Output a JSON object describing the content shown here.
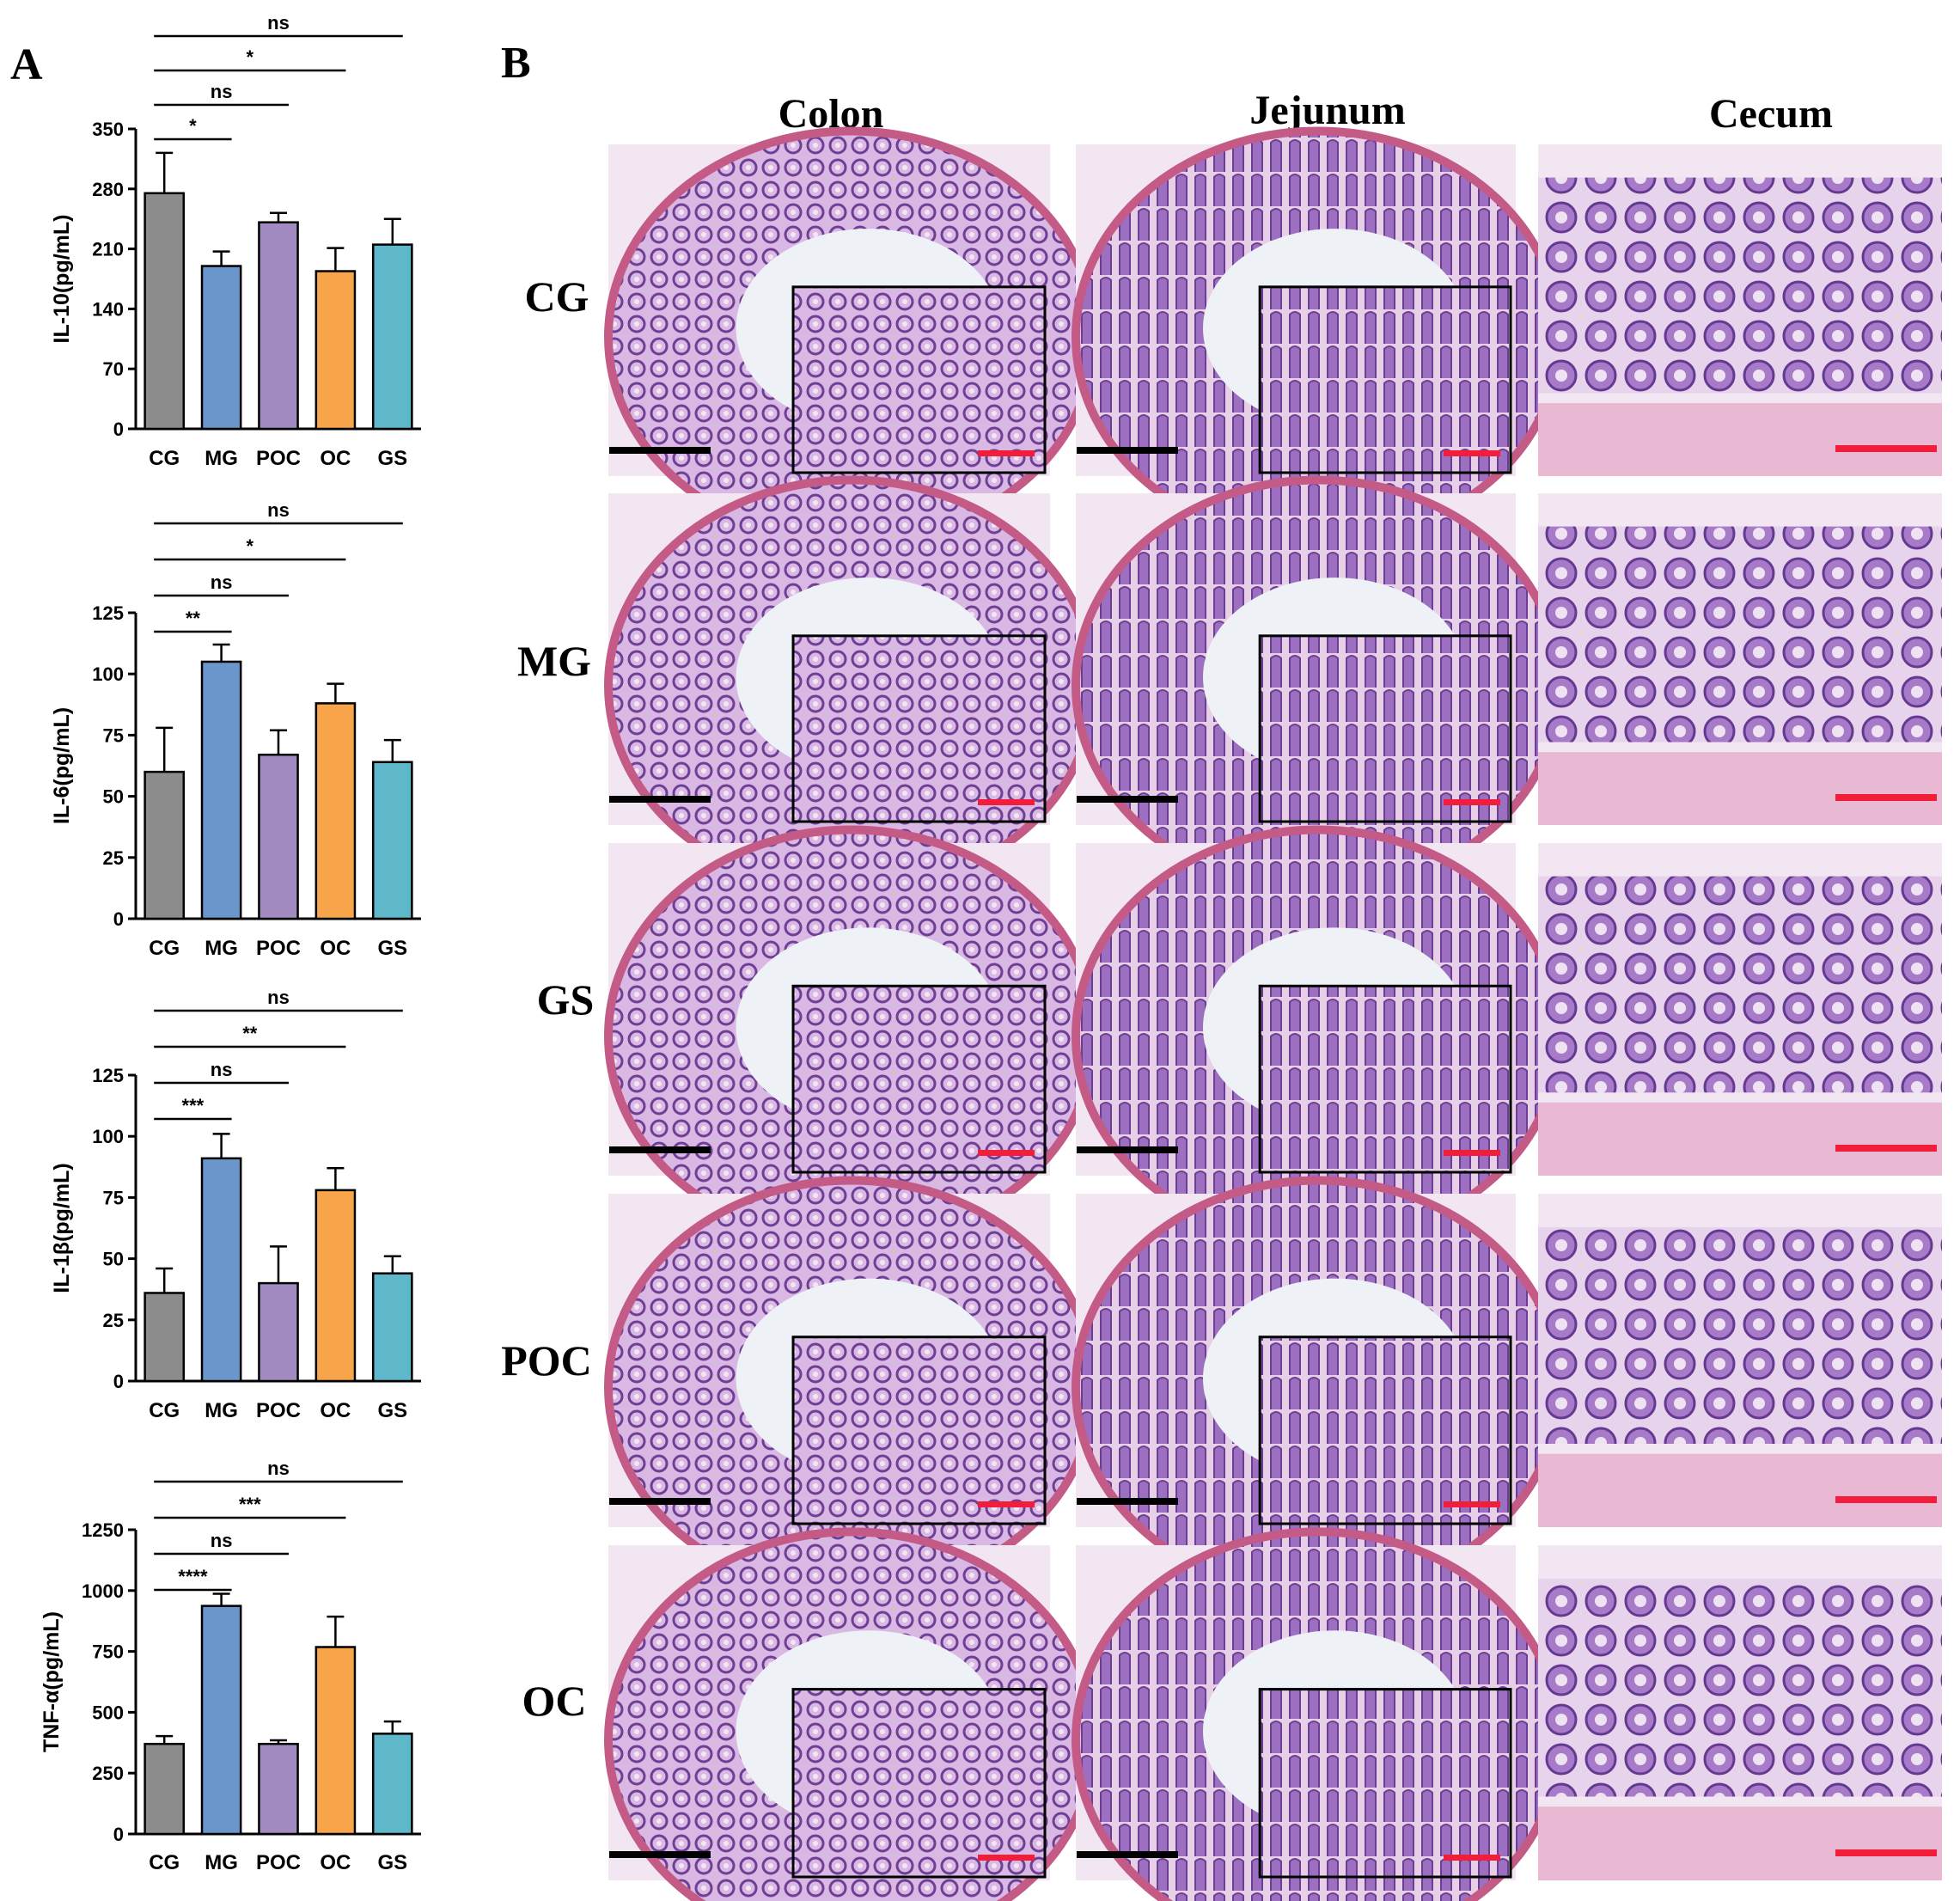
{
  "panels": {
    "a": "A",
    "b": "B"
  },
  "chart_data": [
    {
      "type": "bar",
      "ylabel": "IL-10(pg/mL)",
      "categories": [
        "CG",
        "MG",
        "POC",
        "OC",
        "GS"
      ],
      "values": [
        275,
        190,
        241,
        184,
        215
      ],
      "errors": [
        47,
        17,
        11,
        27,
        30
      ],
      "colors": [
        "#8c8c8c",
        "#6b96cb",
        "#a18bc0",
        "#f7a44a",
        "#5fb8c9"
      ],
      "ylim": [
        0,
        350
      ],
      "yticks": [
        0,
        70,
        140,
        210,
        280,
        350
      ],
      "comparisons": [
        {
          "a": "CG",
          "b": "MG",
          "label": "*"
        },
        {
          "a": "CG",
          "b": "POC",
          "label": "ns"
        },
        {
          "a": "CG",
          "b": "OC",
          "label": "*"
        },
        {
          "a": "CG",
          "b": "GS",
          "label": "ns"
        }
      ]
    },
    {
      "type": "bar",
      "ylabel": "IL-6(pg/mL)",
      "categories": [
        "CG",
        "MG",
        "POC",
        "OC",
        "GS"
      ],
      "values": [
        60,
        105,
        67,
        88,
        64
      ],
      "errors": [
        18,
        7,
        10,
        8,
        9
      ],
      "colors": [
        "#8c8c8c",
        "#6b96cb",
        "#a18bc0",
        "#f7a44a",
        "#5fb8c9"
      ],
      "ylim": [
        0,
        125
      ],
      "yticks": [
        0,
        25,
        50,
        75,
        100,
        125
      ],
      "comparisons": [
        {
          "a": "CG",
          "b": "MG",
          "label": "**"
        },
        {
          "a": "CG",
          "b": "POC",
          "label": "ns"
        },
        {
          "a": "CG",
          "b": "OC",
          "label": "*"
        },
        {
          "a": "CG",
          "b": "GS",
          "label": "ns"
        }
      ]
    },
    {
      "type": "bar",
      "ylabel": "IL-1β(pg/mL)",
      "categories": [
        "CG",
        "MG",
        "POC",
        "OC",
        "GS"
      ],
      "values": [
        36,
        91,
        40,
        78,
        44
      ],
      "errors": [
        10,
        10,
        15,
        9,
        7
      ],
      "colors": [
        "#8c8c8c",
        "#6b96cb",
        "#a18bc0",
        "#f7a44a",
        "#5fb8c9"
      ],
      "ylim": [
        0,
        125
      ],
      "yticks": [
        0,
        25,
        50,
        75,
        100,
        125
      ],
      "comparisons": [
        {
          "a": "CG",
          "b": "MG",
          "label": "***"
        },
        {
          "a": "CG",
          "b": "POC",
          "label": "ns"
        },
        {
          "a": "CG",
          "b": "OC",
          "label": "**"
        },
        {
          "a": "CG",
          "b": "GS",
          "label": "ns"
        }
      ]
    },
    {
      "type": "bar",
      "ylabel": "TNF-α(pg/mL)",
      "categories": [
        "CG",
        "MG",
        "POC",
        "OC",
        "GS"
      ],
      "values": [
        370,
        937,
        370,
        768,
        412
      ],
      "errors": [
        32,
        50,
        15,
        125,
        50
      ],
      "colors": [
        "#8c8c8c",
        "#6b96cb",
        "#a18bc0",
        "#f7a44a",
        "#5fb8c9"
      ],
      "ylim": [
        0,
        1250
      ],
      "yticks": [
        0,
        250,
        500,
        750,
        1000,
        1250
      ],
      "comparisons": [
        {
          "a": "CG",
          "b": "MG",
          "label": "****"
        },
        {
          "a": "CG",
          "b": "POC",
          "label": "ns"
        },
        {
          "a": "CG",
          "b": "OC",
          "label": "***"
        },
        {
          "a": "CG",
          "b": "GS",
          "label": "ns"
        }
      ]
    }
  ],
  "histology": {
    "columns": [
      "Colon",
      "Jejunum",
      "Cecum"
    ],
    "rows": [
      "CG",
      "MG",
      "GS",
      "POC",
      "OC"
    ]
  }
}
